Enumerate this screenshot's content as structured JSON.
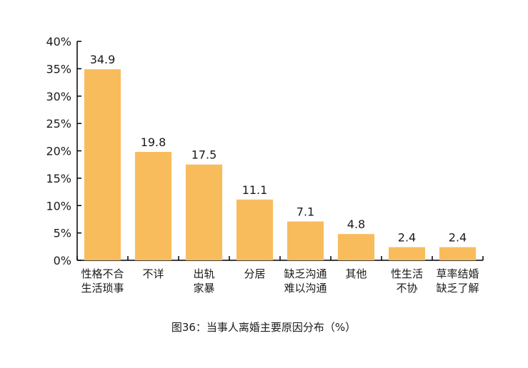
{
  "chart_data": {
    "type": "bar",
    "categories": [
      [
        "性格不合",
        "生活琐事"
      ],
      [
        "不详"
      ],
      [
        "出轨",
        "家暴"
      ],
      [
        "分居"
      ],
      [
        "缺乏沟通",
        "难以沟通"
      ],
      [
        "其他"
      ],
      [
        "性生活",
        "不协"
      ],
      [
        "草率结婚",
        "缺乏了解"
      ]
    ],
    "values": [
      34.9,
      19.8,
      17.5,
      11.1,
      7.1,
      4.8,
      2.4,
      2.4
    ],
    "value_labels": [
      "34.9",
      "19.8",
      "17.5",
      "11.1",
      "7.1",
      "4.8",
      "2.4",
      "2.4"
    ],
    "ylim": [
      0,
      40
    ],
    "yticks": [
      0,
      5,
      10,
      15,
      20,
      25,
      30,
      35,
      40
    ],
    "ytick_labels": [
      "0%",
      "5%",
      "10%",
      "15%",
      "20%",
      "25%",
      "30%",
      "35%",
      "40%"
    ],
    "bar_color": "#F8BC5C",
    "axis_color": "#000000",
    "caption": "图36：当事人离婚主要原因分布（%）",
    "grid": false,
    "legend": "none"
  }
}
